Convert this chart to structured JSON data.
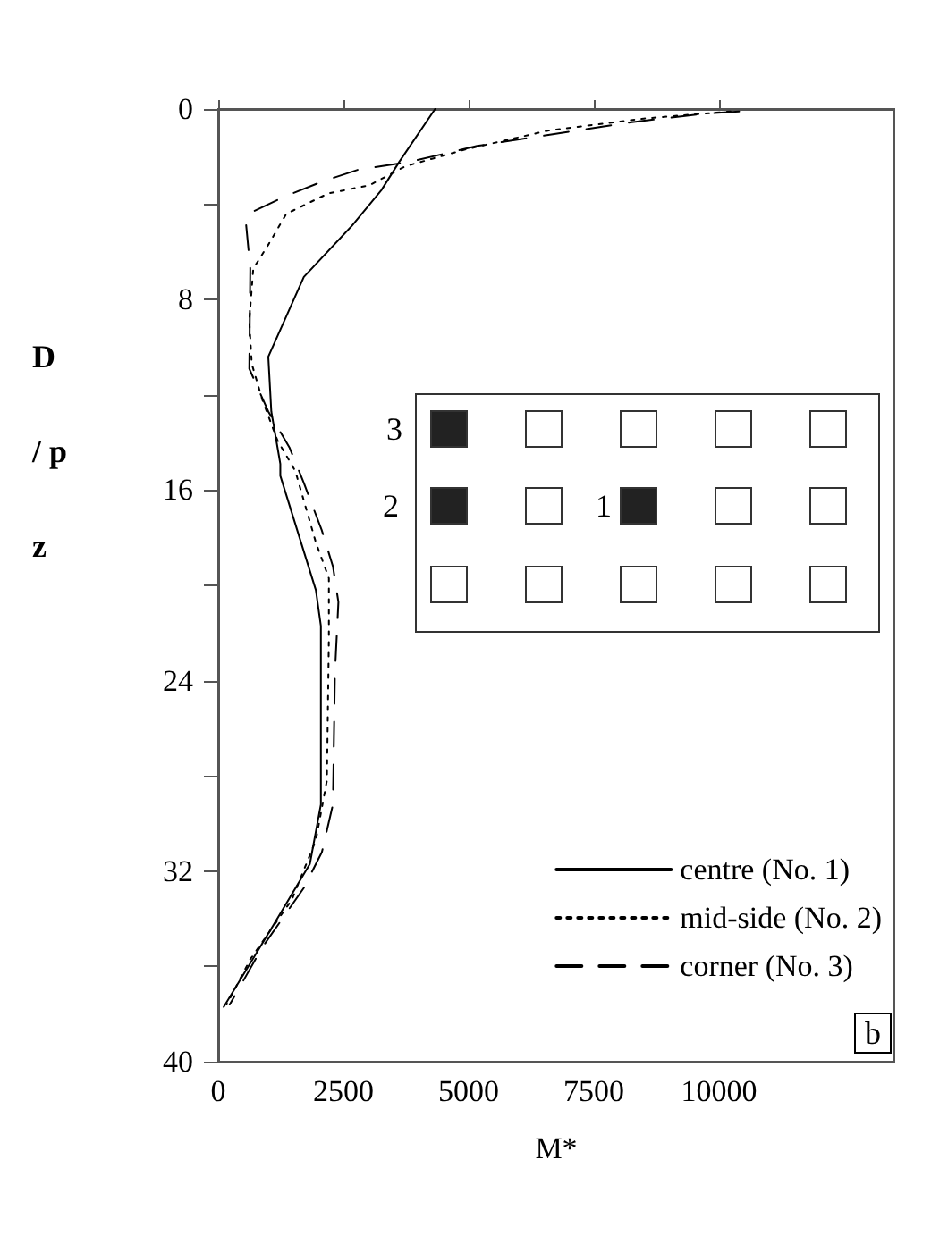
{
  "chart_data": {
    "type": "line",
    "xlabel": "M*",
    "ylabel": "D\n/ p\nz",
    "xlim": [
      0,
      13500
    ],
    "xticks": [
      0,
      2500,
      5000,
      7500,
      10000
    ],
    "ylim": [
      40,
      0
    ],
    "yticks": [
      0,
      {
        "value": 4,
        "label": null
      },
      8,
      {
        "value": 12,
        "label": null
      },
      16,
      {
        "value": 20,
        "label": null
      },
      24,
      {
        "value": 28,
        "label": null
      },
      32,
      {
        "value": 36,
        "label": null
      },
      40
    ],
    "grid": false,
    "legend": "bottom right",
    "marker": "none",
    "annotations": [
      "3",
      "2",
      "1",
      "b"
    ],
    "series": [
      {
        "name": "centre (No. 1)",
        "color": "#000000",
        "line_style": "solid",
        "x": [
          4330,
          3620,
          3260,
          2670,
          1710,
          1000,
          1060,
          1240,
          1240,
          1950,
          2050,
          2050,
          1830,
          1120,
          110
        ],
        "values": [
          0,
          2.2,
          3.4,
          4.9,
          7.05,
          10.4,
          12.7,
          14.9,
          15.4,
          20.2,
          21.7,
          29.2,
          31.7,
          34.2,
          37.7
        ]
      },
      {
        "name": "mid-side (No. 2)",
        "color": "#000000",
        "line_style": "dotted",
        "x": [
          10230,
          8500,
          6600,
          4930,
          3740,
          3020,
          2190,
          1360,
          1000,
          700,
          620,
          670,
          880,
          1180,
          1540,
          1950,
          2210,
          2210,
          2170,
          1950,
          1470,
          640,
          170
        ],
        "values": [
          0.1,
          0.4,
          0.9,
          1.7,
          2.4,
          3.2,
          3.55,
          4.4,
          5.7,
          6.7,
          8.9,
          10.7,
          12.2,
          13.9,
          15.2,
          18.2,
          19.7,
          22.2,
          28.2,
          30.7,
          33.2,
          35.7,
          37.6
        ]
      },
      {
        "name": "corner (No. 3)",
        "color": "#000000",
        "line_style": "dashed",
        "x": [
          10400,
          9690,
          8260,
          6710,
          5170,
          3860,
          2790,
          2070,
          1300,
          700,
          550,
          640,
          620,
          1000,
          1420,
          1710,
          2070,
          2290,
          2400,
          2330,
          2290,
          2070,
          1710,
          880,
          230
        ],
        "values": [
          0.1,
          0.2,
          0.55,
          1.05,
          1.55,
          2.2,
          2.55,
          3.05,
          3.7,
          4.3,
          4.7,
          6.7,
          10.9,
          12.7,
          14.2,
          15.7,
          17.7,
          19.2,
          20.7,
          23.7,
          29.2,
          31.2,
          32.7,
          35.2,
          37.6
        ]
      }
    ]
  }
}
